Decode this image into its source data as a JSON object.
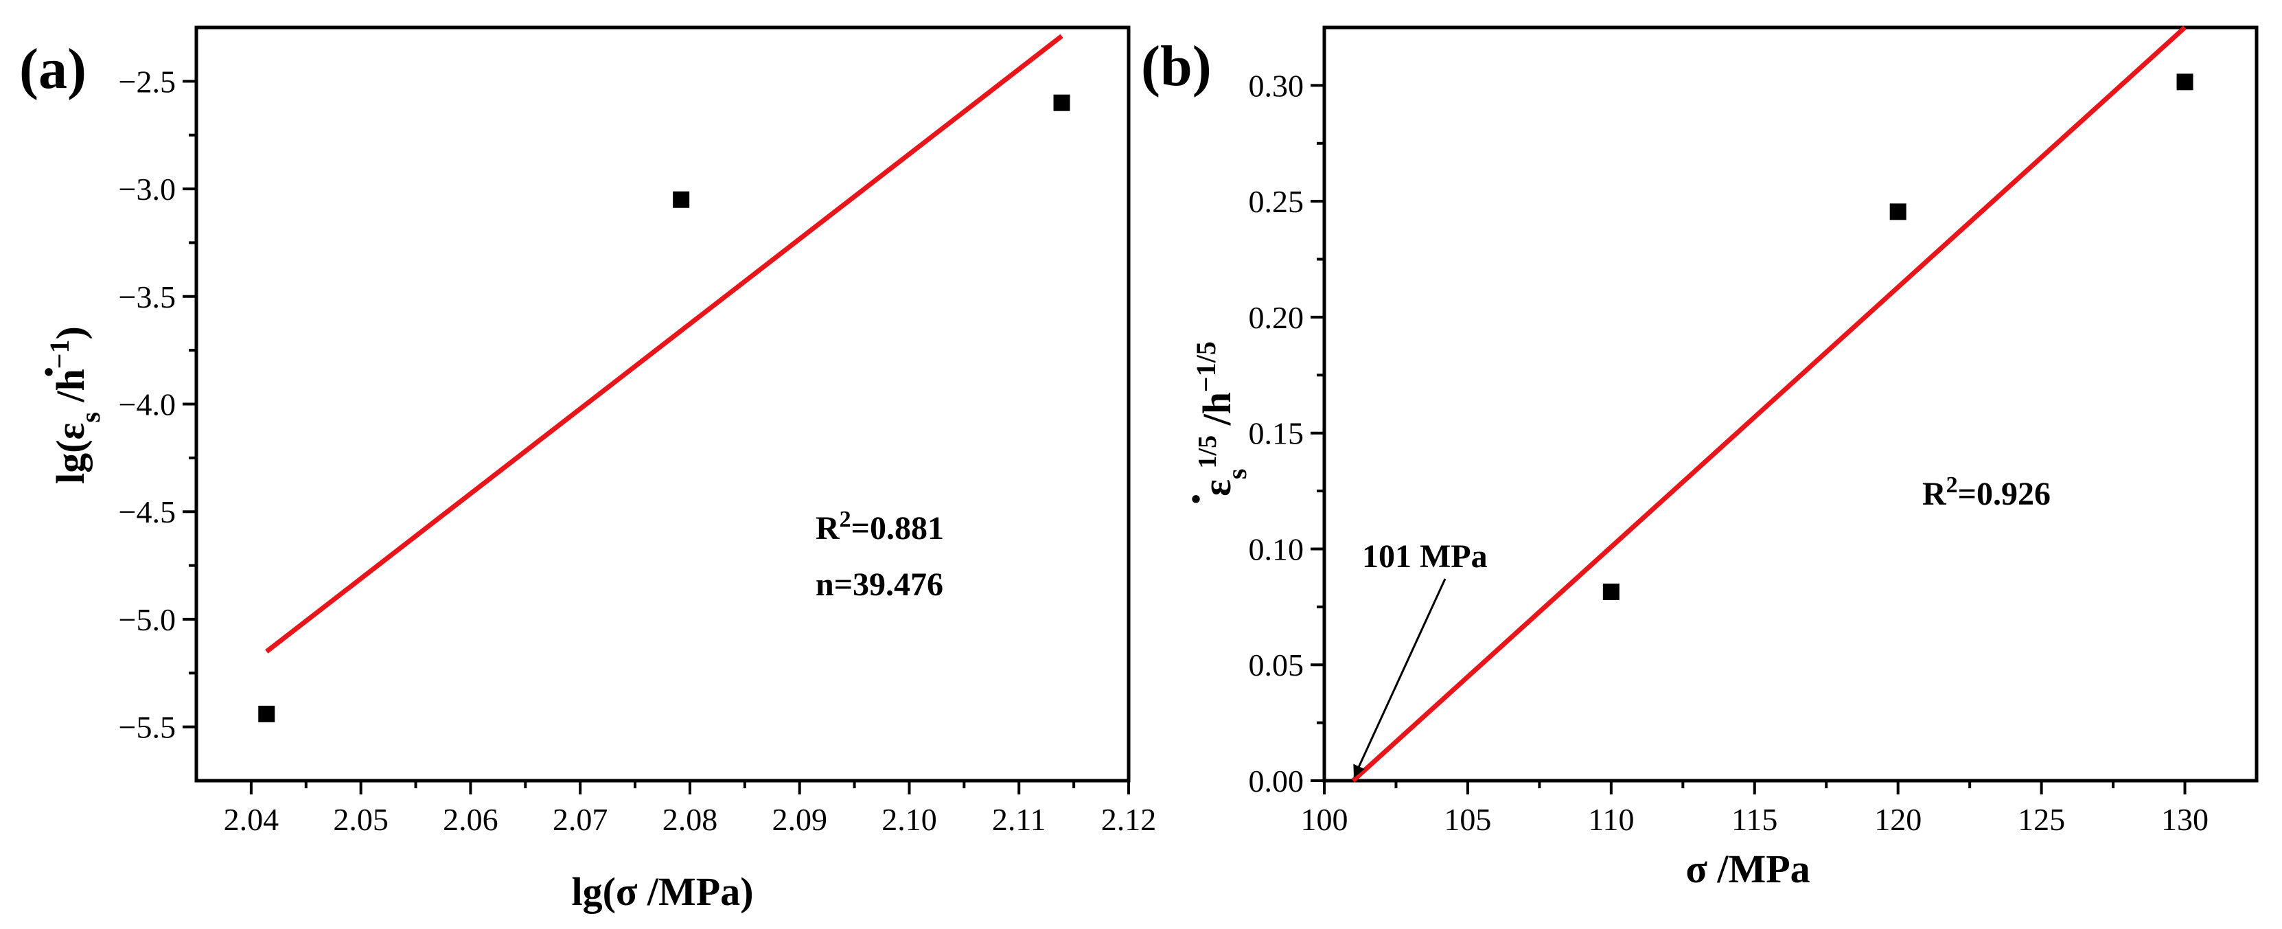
{
  "chart_data": [
    {
      "type": "scatter",
      "panel_label": "(a)",
      "xlabel": "lg(σ /MPa)",
      "ylabel_parts": {
        "prefix": "lg(",
        "symbol": "ε",
        "dot": "·",
        "subscript": "s",
        "unit": " /h",
        "unit_exp": "−1",
        "suffix": ")"
      },
      "xlim": [
        2.035,
        2.12
      ],
      "ylim": [
        -5.75,
        -2.25
      ],
      "xticks": [
        2.04,
        2.05,
        2.06,
        2.07,
        2.08,
        2.09,
        2.1,
        2.11,
        2.12
      ],
      "xtick_labels": [
        "2.04",
        "2.05",
        "2.06",
        "2.07",
        "2.08",
        "2.09",
        "2.10",
        "2.11",
        "2.12"
      ],
      "yticks": [
        -5.5,
        -5.0,
        -4.5,
        -4.0,
        -3.5,
        -3.0,
        -2.5
      ],
      "ytick_labels": [
        "−5.5",
        "−5.0",
        "−4.5",
        "−4.0",
        "−3.5",
        "−3.0",
        "−2.5"
      ],
      "series": [
        {
          "name": "data",
          "x": [
            2.0414,
            2.0792,
            2.1139
          ],
          "y": [
            -5.44,
            -3.05,
            -2.6
          ]
        }
      ],
      "fit_line": {
        "x": [
          2.0414,
          2.1139
        ],
        "y": [
          -5.15,
          -2.29
        ],
        "color": "#e8161b"
      },
      "annotations": {
        "r2_prefix": "R",
        "r2_exp": "2",
        "r2_value": "=0.881",
        "n_text": "n=39.476"
      }
    },
    {
      "type": "scatter",
      "panel_label": "(b)",
      "xlabel": "σ /MPa",
      "ylabel_parts": {
        "symbol": "ε",
        "dot": "·",
        "subscript": "s",
        "sup": "1/5",
        "unit": " /h",
        "unit_exp": "−1/5"
      },
      "xlim": [
        100,
        132.5
      ],
      "ylim": [
        0,
        0.325
      ],
      "xticks": [
        100,
        105,
        110,
        115,
        120,
        125,
        130
      ],
      "xtick_labels": [
        "100",
        "105",
        "110",
        "115",
        "120",
        "125",
        "130"
      ],
      "yticks": [
        0,
        0.05,
        0.1,
        0.15,
        0.2,
        0.25,
        0.3
      ],
      "ytick_labels": [
        "0.00",
        "0.05",
        "0.10",
        "0.15",
        "0.20",
        "0.25",
        "0.30"
      ],
      "series": [
        {
          "name": "data",
          "x": [
            110,
            120,
            130
          ],
          "y": [
            0.0815,
            0.2455,
            0.3015
          ]
        }
      ],
      "fit_line": {
        "x": [
          101,
          130
        ],
        "y": [
          0,
          0.325
        ],
        "color": "#e8161b"
      },
      "annotations": {
        "r2_prefix": "R",
        "r2_exp": "2",
        "r2_value": "=0.926",
        "arrow_label": "101 MPa",
        "arrow_target": {
          "x": 101,
          "y": 0
        }
      }
    }
  ]
}
